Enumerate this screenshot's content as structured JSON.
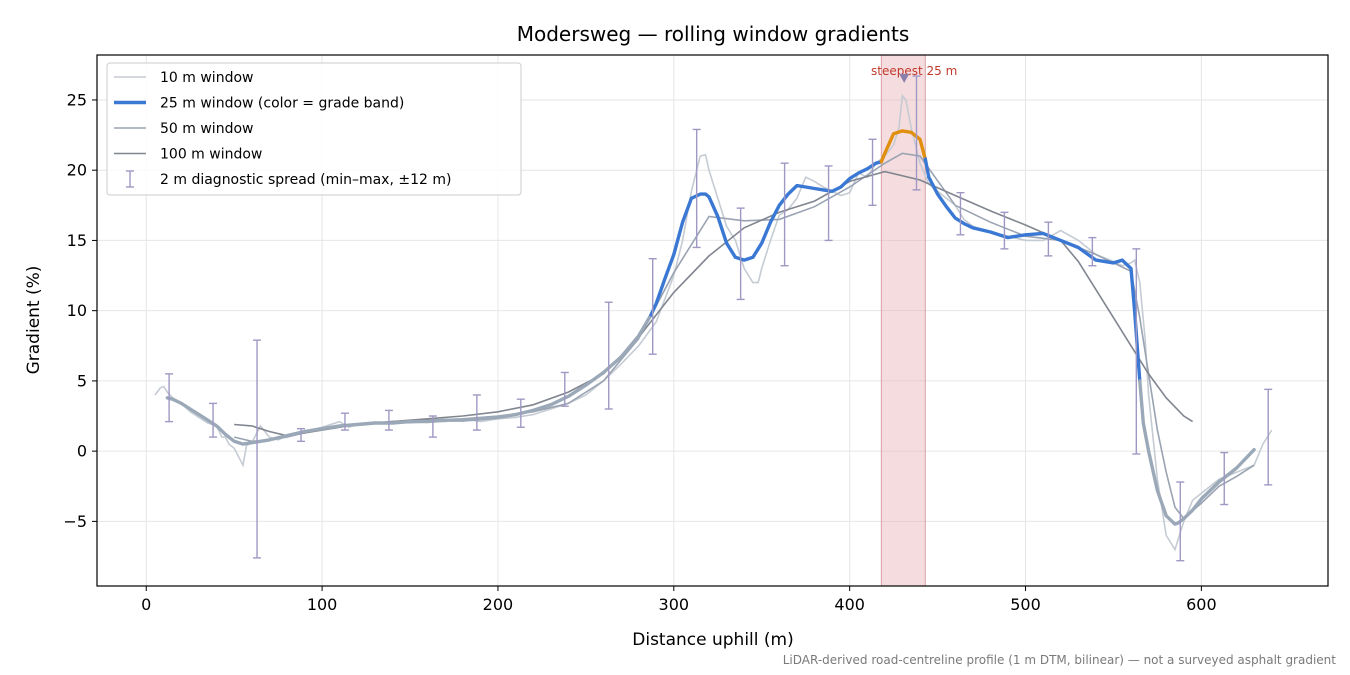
{
  "chart_data": {
    "type": "line",
    "title": "Modersweg — rolling window gradients",
    "xlabel": "Distance uphill (m)",
    "ylabel": "Gradient (%)",
    "xlim": [
      -28,
      672
    ],
    "ylim": [
      -9.6,
      28.2
    ],
    "xticks": [
      0,
      100,
      200,
      300,
      400,
      500,
      600
    ],
    "yticks": [
      -5,
      0,
      5,
      10,
      15,
      20,
      25
    ],
    "ytick_labels": [
      "−5",
      "0",
      "5",
      "10",
      "15",
      "20",
      "25"
    ],
    "grid": true,
    "legend_position": "top-left",
    "footnote": "LiDAR-derived road-centreline profile (1 m DTM, bilinear) — not a surveyed asphalt gradient",
    "highlight": {
      "x_start": 418,
      "x_end": 443,
      "label": "steepest 25 m",
      "peak_x": 431,
      "peak_y": 26.5
    },
    "colors": {
      "w10": "#c5cbd3",
      "w25_blue": "#3a78d4",
      "w25_orange": "#e0900e",
      "w25_gray": "#9aa8b8",
      "w50": "#9aa3b2",
      "w100": "#80858f",
      "errorbar": "#9f98c4",
      "highlight": "#e8b4b8"
    },
    "series": [
      {
        "name": "10 m window",
        "x": [
          5,
          8,
          10,
          12,
          15,
          20,
          25,
          30,
          35,
          40,
          43,
          45,
          47,
          50,
          55,
          57,
          60,
          65,
          70,
          75,
          80,
          90,
          100,
          110,
          115,
          120,
          130,
          140,
          150,
          160,
          170,
          180,
          190,
          200,
          210,
          220,
          230,
          240,
          250,
          260,
          270,
          280,
          290,
          300,
          305,
          310,
          315,
          318,
          320,
          325,
          330,
          335,
          340,
          345,
          348,
          350,
          355,
          360,
          365,
          370,
          375,
          380,
          385,
          390,
          395,
          400,
          405,
          410,
          415,
          420,
          425,
          428,
          430,
          432,
          435,
          440,
          445,
          450,
          455,
          460,
          465,
          470,
          480,
          490,
          500,
          510,
          520,
          530,
          540,
          550,
          555,
          560,
          562,
          565,
          568,
          570,
          575,
          580,
          585,
          590,
          595,
          600,
          610,
          620,
          630,
          635,
          640
        ],
        "y": [
          4.0,
          4.5,
          4.6,
          4.2,
          3.8,
          3.4,
          2.8,
          2.4,
          2.0,
          1.8,
          1.0,
          1.0,
          0.5,
          0.2,
          -1.0,
          0.4,
          0.6,
          1.8,
          1.0,
          0.8,
          1.1,
          1.4,
          1.7,
          2.1,
          1.7,
          1.9,
          2.0,
          2.1,
          2.0,
          2.1,
          2.1,
          2.3,
          2.1,
          2.3,
          2.4,
          2.6,
          3.0,
          3.4,
          4.0,
          5.0,
          6.2,
          7.5,
          9.2,
          12.5,
          15.0,
          18.5,
          21.0,
          21.1,
          20.0,
          18.0,
          16.0,
          15.0,
          13.0,
          12.0,
          12.0,
          13.0,
          15.0,
          16.8,
          17.2,
          18.0,
          19.5,
          19.2,
          18.8,
          18.5,
          18.2,
          18.4,
          19.8,
          19.5,
          20.5,
          21.0,
          21.8,
          23.0,
          25.3,
          25.0,
          23.0,
          20.5,
          19.0,
          18.5,
          18.0,
          17.5,
          16.5,
          16.0,
          15.6,
          15.3,
          15.0,
          15.0,
          15.7,
          15.0,
          14.0,
          13.5,
          13.2,
          13.4,
          13.6,
          12.0,
          8.0,
          4.0,
          -2.0,
          -6.0,
          -7.0,
          -5.0,
          -3.5,
          -3.0,
          -2.0,
          -1.5,
          -1.0,
          0.5,
          1.5
        ]
      },
      {
        "name": "25 m window (color = grade band)",
        "x": [
          12,
          15,
          20,
          25,
          30,
          35,
          40,
          45,
          50,
          55,
          60,
          65,
          70,
          80,
          90,
          100,
          110,
          120,
          130,
          140,
          150,
          160,
          170,
          180,
          190,
          200,
          210,
          220,
          230,
          240,
          250,
          260,
          270,
          280,
          287,
          290,
          295,
          300,
          305,
          310,
          315,
          318,
          320,
          325,
          330,
          335,
          340,
          345,
          350,
          355,
          360,
          365,
          370,
          375,
          380,
          385,
          390,
          395,
          400,
          405,
          410,
          415,
          418,
          420,
          425,
          430,
          435,
          440,
          443,
          445,
          450,
          455,
          460,
          465,
          470,
          480,
          490,
          500,
          510,
          520,
          530,
          540,
          550,
          555,
          560,
          562,
          565,
          567,
          570,
          575,
          580,
          585,
          587,
          590,
          595,
          600,
          610,
          620,
          630
        ],
        "y": [
          3.8,
          3.7,
          3.4,
          3.0,
          2.6,
          2.2,
          1.8,
          1.2,
          0.7,
          0.5,
          0.6,
          0.7,
          0.8,
          1.1,
          1.4,
          1.6,
          1.8,
          1.9,
          2.0,
          2.0,
          2.1,
          2.1,
          2.2,
          2.2,
          2.3,
          2.4,
          2.6,
          2.9,
          3.3,
          3.9,
          4.7,
          5.6,
          6.7,
          8.2,
          9.7,
          10.5,
          12.3,
          14.0,
          16.3,
          18.0,
          18.3,
          18.3,
          18.1,
          16.7,
          14.8,
          13.8,
          13.6,
          13.8,
          14.8,
          16.3,
          17.5,
          18.3,
          18.9,
          18.8,
          18.7,
          18.6,
          18.5,
          18.8,
          19.4,
          19.8,
          20.1,
          20.5,
          20.6,
          21.2,
          22.6,
          22.8,
          22.7,
          22.2,
          20.8,
          19.5,
          18.3,
          17.4,
          16.6,
          16.2,
          15.9,
          15.6,
          15.2,
          15.4,
          15.5,
          15.0,
          14.5,
          13.6,
          13.4,
          13.6,
          13.0,
          10.0,
          5.0,
          2.0,
          0.0,
          -2.8,
          -4.6,
          -5.2,
          -5.1,
          -4.8,
          -4.2,
          -3.4,
          -2.2,
          -1.2,
          0.1
        ]
      },
      {
        "name": "50 m window",
        "x": [
          50,
          60,
          70,
          80,
          90,
          100,
          120,
          140,
          160,
          180,
          200,
          220,
          240,
          260,
          280,
          300,
          320,
          340,
          360,
          380,
          400,
          420,
          430,
          440,
          460,
          480,
          500,
          520,
          540,
          550,
          560,
          565,
          570,
          575,
          580,
          585,
          590,
          600,
          610,
          620,
          630
        ],
        "y": [
          1.0,
          0.7,
          0.8,
          1.0,
          1.3,
          1.6,
          1.9,
          2.1,
          2.2,
          2.3,
          2.5,
          2.8,
          3.4,
          5.0,
          8.0,
          12.7,
          16.7,
          16.4,
          16.5,
          17.4,
          18.8,
          20.5,
          21.2,
          21.0,
          17.5,
          16.3,
          15.3,
          15.0,
          14.0,
          13.4,
          12.8,
          9.5,
          5.5,
          1.5,
          -1.5,
          -4.0,
          -4.8,
          -3.7,
          -2.5,
          -1.8,
          -1.0
        ]
      },
      {
        "name": "100 m window",
        "x": [
          50,
          60,
          70,
          80,
          90,
          100,
          120,
          140,
          160,
          180,
          200,
          220,
          240,
          260,
          280,
          300,
          320,
          340,
          360,
          380,
          400,
          420,
          440,
          460,
          480,
          500,
          520,
          530,
          540,
          550,
          560,
          570,
          580,
          590,
          595
        ],
        "y": [
          1.9,
          1.8,
          1.4,
          1.1,
          1.3,
          1.5,
          1.9,
          2.1,
          2.3,
          2.5,
          2.8,
          3.3,
          4.2,
          5.5,
          8.1,
          11.3,
          13.9,
          15.9,
          17.0,
          17.8,
          19.2,
          19.9,
          19.3,
          18.2,
          17.1,
          16.1,
          15.0,
          13.5,
          11.5,
          9.5,
          7.5,
          5.5,
          3.8,
          2.5,
          2.1
        ]
      },
      {
        "name": "2 m diagnostic spread (min–max, ±12 m)",
        "x": [
          13,
          38,
          63,
          88,
          113,
          138,
          163,
          188,
          213,
          238,
          263,
          288,
          313,
          338,
          363,
          388,
          413,
          438,
          463,
          488,
          513,
          538,
          563,
          588,
          613,
          638
        ],
        "low": [
          2.1,
          1.0,
          -7.6,
          0.7,
          1.5,
          1.5,
          1.0,
          1.5,
          1.7,
          3.2,
          3.0,
          6.9,
          14.5,
          10.8,
          13.2,
          15.0,
          17.5,
          18.6,
          15.4,
          14.4,
          13.9,
          13.2,
          -0.2,
          -7.8,
          -3.8,
          -2.4
        ],
        "high": [
          5.5,
          3.4,
          7.9,
          1.6,
          2.7,
          2.9,
          2.5,
          4.0,
          3.7,
          5.6,
          10.6,
          13.7,
          22.9,
          17.3,
          20.5,
          20.3,
          22.2,
          26.7,
          18.4,
          17.0,
          16.3,
          15.2,
          14.4,
          -2.2,
          -0.1,
          4.4
        ]
      }
    ],
    "grade_bands": [
      {
        "x_start": 12,
        "x_end": 287,
        "color": "#9aa8b8"
      },
      {
        "x_start": 287,
        "x_end": 418,
        "color": "#3a78d4"
      },
      {
        "x_start": 418,
        "x_end": 443,
        "color": "#e0900e"
      },
      {
        "x_start": 443,
        "x_end": 565,
        "color": "#3a78d4"
      },
      {
        "x_start": 565,
        "x_end": 630,
        "color": "#9aa8b8"
      }
    ]
  }
}
